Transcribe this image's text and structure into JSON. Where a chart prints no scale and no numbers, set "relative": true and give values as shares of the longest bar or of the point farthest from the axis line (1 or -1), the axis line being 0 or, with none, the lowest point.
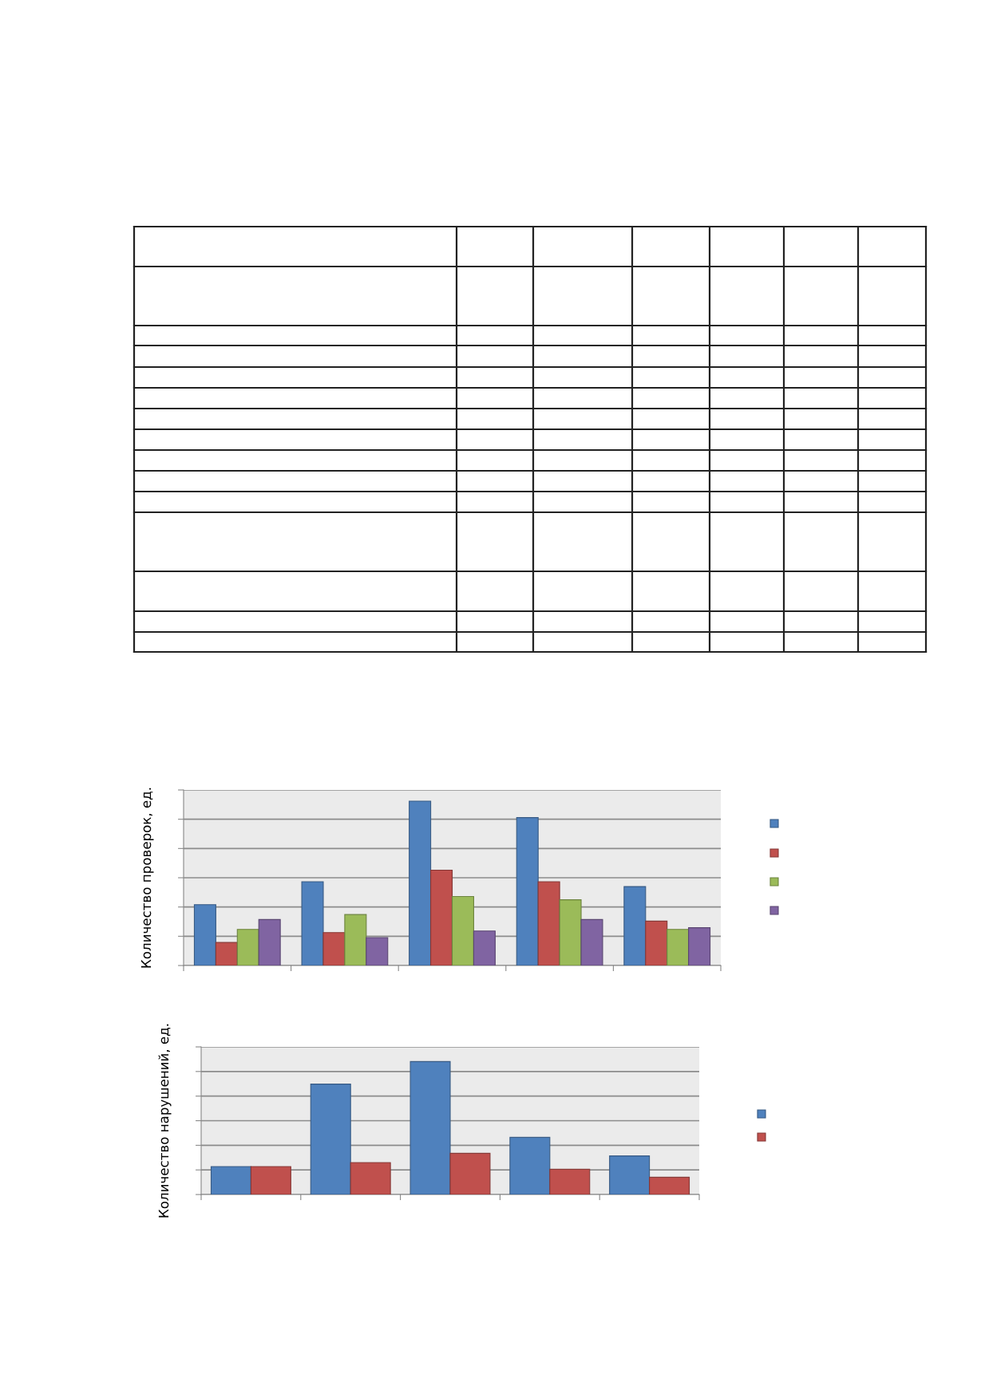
{
  "chart_data": [
    {
      "type": "bar",
      "relative": true,
      "ylabel": "Количество проверок, ед.",
      "categories": [
        null,
        null,
        null,
        null,
        null
      ],
      "grid": "y",
      "tick_labels": false,
      "legend": false,
      "series": [
        {
          "color": "#4f81bd",
          "values": [
            0.37,
            0.51,
            1.0,
            0.9,
            0.48
          ]
        },
        {
          "color": "#c0504d",
          "values": [
            0.14,
            0.2,
            0.58,
            0.51,
            0.27
          ]
        },
        {
          "color": "#9bbb59",
          "values": [
            0.22,
            0.31,
            0.42,
            0.4,
            0.22
          ]
        },
        {
          "color": "#8064a2",
          "values": [
            0.28,
            0.17,
            0.21,
            0.28,
            0.23
          ]
        }
      ]
    },
    {
      "type": "bar",
      "relative": true,
      "ylabel": "Количество нарушений, ед.",
      "categories": [
        null,
        null,
        null,
        null,
        null
      ],
      "grid": "y",
      "tick_labels": false,
      "legend": false,
      "series": [
        {
          "color": "#4f81bd",
          "values": [
            0.21,
            0.83,
            1.0,
            0.43,
            0.29
          ]
        },
        {
          "color": "#c0504d",
          "values": [
            0.21,
            0.24,
            0.31,
            0.19,
            0.13
          ]
        }
      ]
    }
  ]
}
